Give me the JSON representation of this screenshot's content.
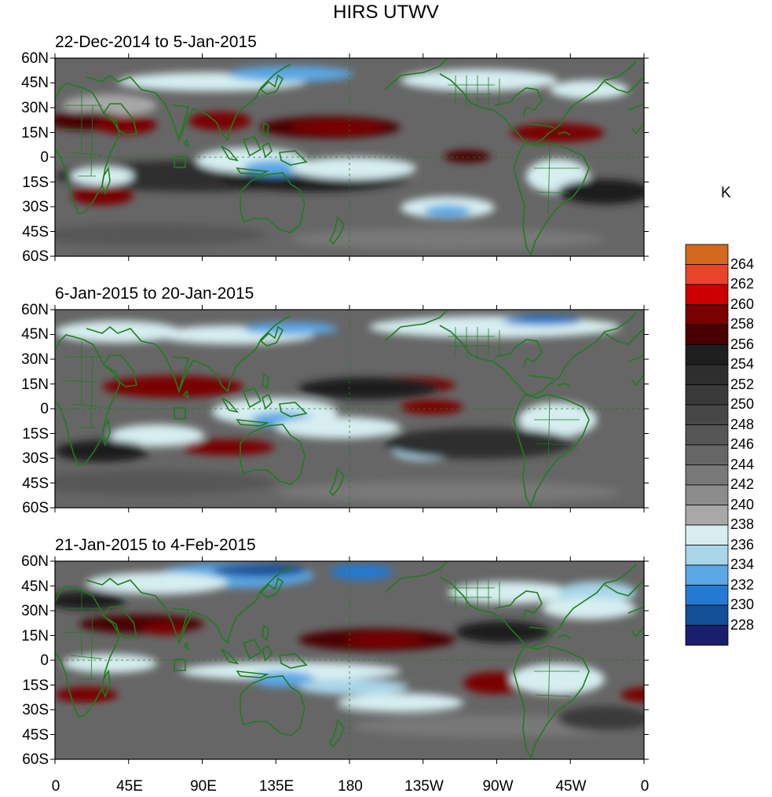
{
  "title": "HIRS UTWV",
  "panels": [
    {
      "title": "22-Dec-2014 to 5-Jan-2015"
    },
    {
      "title": "6-Jan-2015 to 20-Jan-2015"
    },
    {
      "title": "21-Jan-2015 to 4-Feb-2015"
    }
  ],
  "lat_labels": [
    "60N",
    "45N",
    "30N",
    "15N",
    "0",
    "15S",
    "30S",
    "45S",
    "60S"
  ],
  "lon_labels": [
    "0",
    "45E",
    "90E",
    "135E",
    "180",
    "135W",
    "90W",
    "45W",
    "0"
  ],
  "colorbar": {
    "unit": "K",
    "labels": [
      "264",
      "262",
      "260",
      "258",
      "256",
      "254",
      "252",
      "250",
      "248",
      "246",
      "244",
      "242",
      "240",
      "238",
      "236",
      "234",
      "232",
      "230",
      "228"
    ],
    "colors": [
      "#d2691e",
      "#e8442a",
      "#cc0000",
      "#7a0000",
      "#4a0000",
      "#1f1f1f",
      "#2e2e2e",
      "#3a3a3a",
      "#474747",
      "#565656",
      "#666666",
      "#787878",
      "#8c8c8c",
      "#a8a8a8",
      "#d6eef0",
      "#a9d6e8",
      "#5aa8e6",
      "#2479d1",
      "#124f96",
      "#1a1e6e"
    ]
  }
}
